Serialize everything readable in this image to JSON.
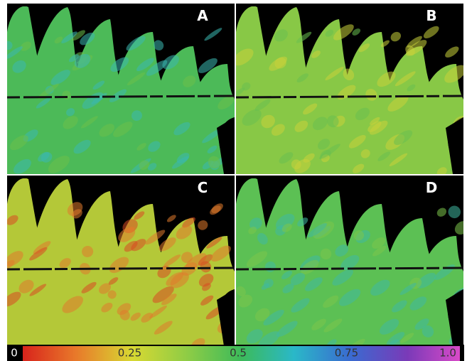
{
  "panels": [
    {
      "label": "A"
    },
    {
      "label": "B"
    },
    {
      "label": "C"
    },
    {
      "label": "D"
    }
  ],
  "colorbar": {
    "range": [
      0,
      1
    ],
    "ticks": [
      0,
      0.25,
      0.5,
      0.75,
      {
        "value": 1,
        "label": "1.0"
      }
    ]
  }
}
